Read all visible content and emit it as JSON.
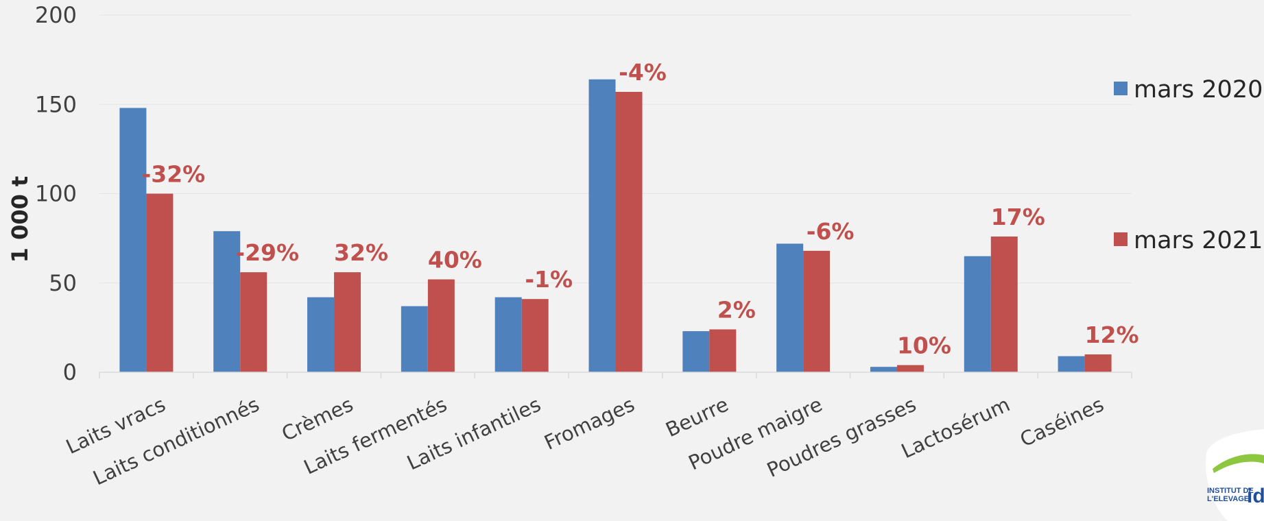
{
  "chart_data": {
    "type": "bar",
    "categories": [
      "Laits vracs",
      "Laits conditionnés",
      "Crèmes",
      "Laits fermentés",
      "Laits infantiles",
      "Fromages",
      "Beurre",
      "Poudre maigre",
      "Poudres grasses",
      "Lactosérum",
      "Caséines"
    ],
    "series": [
      {
        "name": "mars 2020",
        "color": "#4f81bd",
        "values": [
          148,
          79,
          42,
          37,
          42,
          164,
          23,
          72,
          3,
          65,
          9
        ]
      },
      {
        "name": "mars 2021",
        "color": "#c0504d",
        "values": [
          100,
          56,
          56,
          52,
          41,
          157,
          24,
          68,
          4,
          76,
          10
        ]
      }
    ],
    "annotations": [
      "-32%",
      "-29%",
      "32%",
      "40%",
      "-1%",
      "-4%",
      "2%",
      "-6%",
      "10%",
      "17%",
      "12%"
    ],
    "ylabel": "1 000 t",
    "ylim": [
      0,
      200
    ],
    "yticks": [
      0,
      50,
      100,
      150,
      200
    ],
    "grid": true,
    "legend_position": "right"
  },
  "logo": {
    "line1": "INSTITUT DE",
    "line2": "L'ELEVAGE",
    "brand": "ide"
  }
}
